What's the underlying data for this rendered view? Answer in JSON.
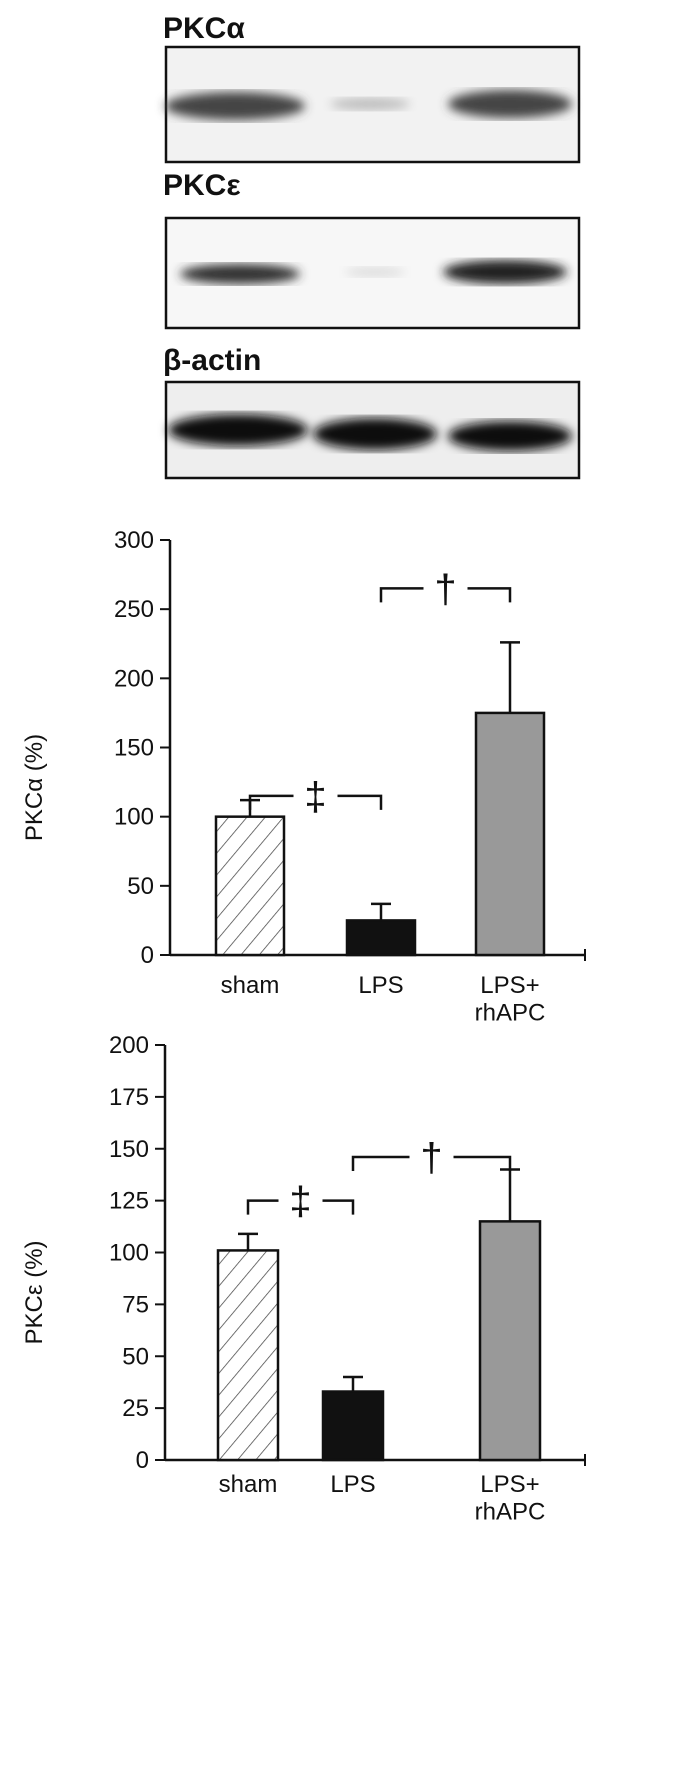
{
  "blots": [
    {
      "label": "PKCα"
    },
    {
      "label": "PKCε"
    },
    {
      "label": "β-actin"
    }
  ],
  "chart_data": [
    {
      "type": "bar",
      "y_label": "PKCα (%)",
      "categories": [
        "sham",
        "LPS",
        "LPS+\nrhAPC"
      ],
      "values": [
        100,
        25,
        175
      ],
      "errors": [
        12,
        12,
        51
      ],
      "colors": [
        "hatch",
        "#111111",
        "#999999"
      ],
      "ylim": [
        0,
        300
      ],
      "yticks": [
        0,
        50,
        100,
        150,
        200,
        250,
        300
      ],
      "annotations": [
        "‡",
        "†"
      ]
    },
    {
      "type": "bar",
      "y_label": "PKCε (%)",
      "categories": [
        "sham",
        "LPS",
        "LPS+\nrhAPC"
      ],
      "values": [
        101,
        33,
        115
      ],
      "errors": [
        8,
        7,
        25
      ],
      "colors": [
        "hatch",
        "#111111",
        "#999999"
      ],
      "ylim": [
        0,
        200
      ],
      "yticks": [
        0,
        25,
        50,
        75,
        100,
        125,
        150,
        175,
        200
      ],
      "annotations": [
        "‡",
        "†"
      ]
    }
  ]
}
